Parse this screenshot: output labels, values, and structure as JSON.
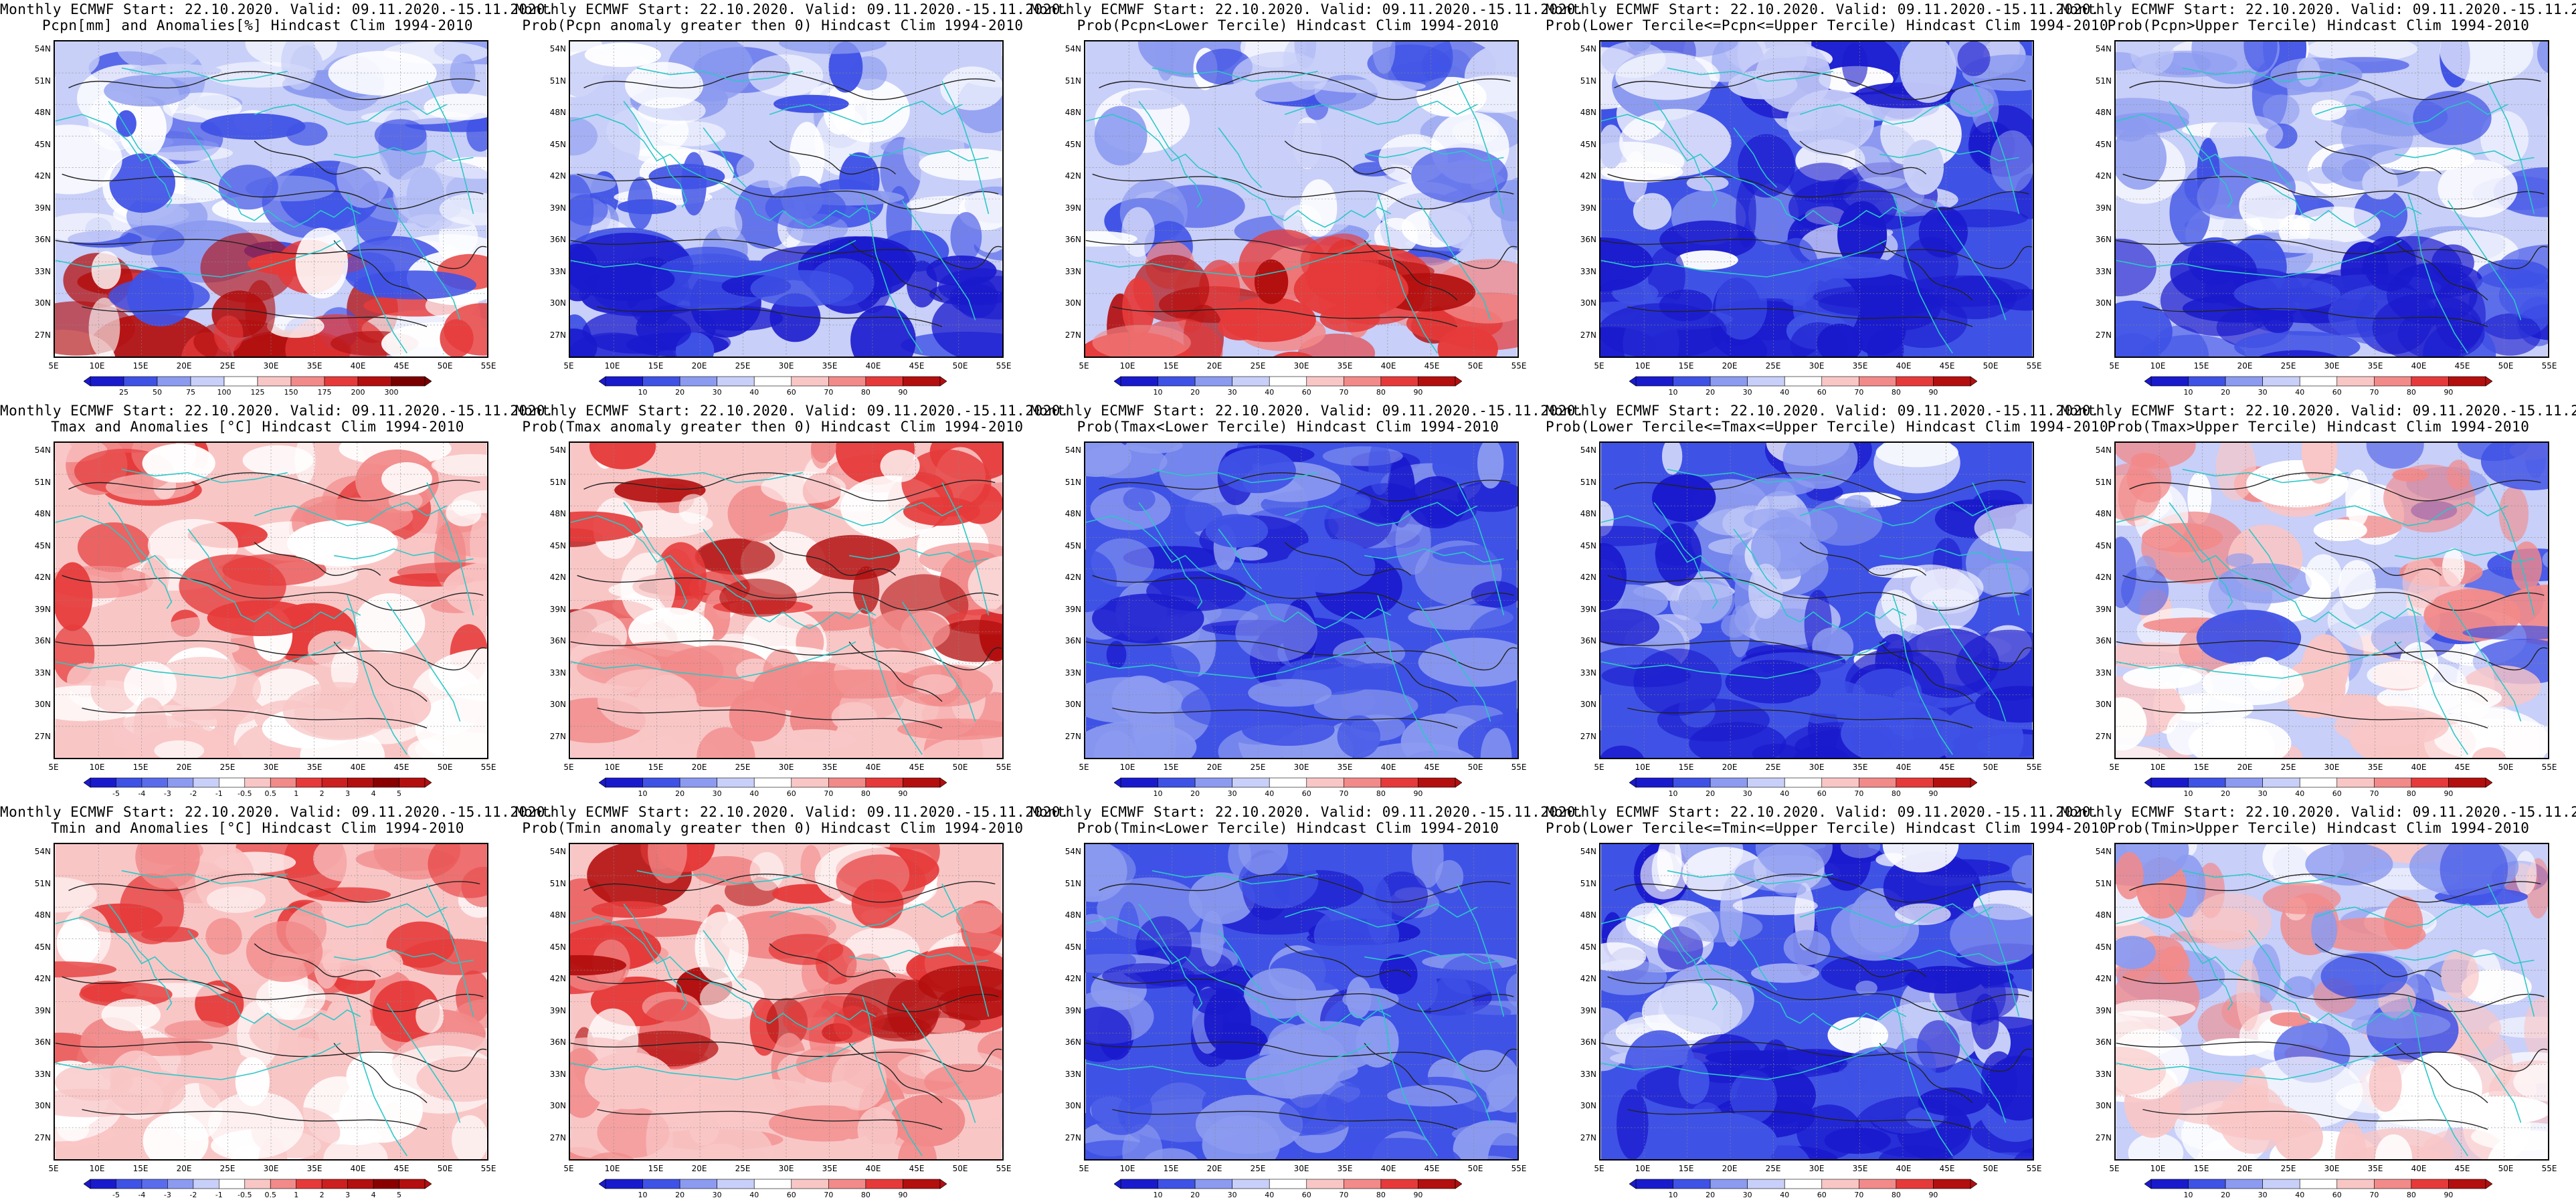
{
  "header_line1": "Monthly ECMWF Start: 22.10.2020. Valid: 09.11.2020.-15.11.2020.",
  "lat_ticks": [
    "54N",
    "51N",
    "48N",
    "45N",
    "42N",
    "39N",
    "36N",
    "33N",
    "30N",
    "27N"
  ],
  "lon_ticks": [
    "5E",
    "10E",
    "15E",
    "20E",
    "25E",
    "30E",
    "35E",
    "40E",
    "45E",
    "50E",
    "55E"
  ],
  "colorbars": {
    "pcpn_anom": [
      "25",
      "50",
      "75",
      "100",
      "125",
      "150",
      "175",
      "200",
      "300"
    ],
    "prob": [
      "10",
      "20",
      "30",
      "40",
      "60",
      "70",
      "80",
      "90"
    ],
    "temp_anom": [
      "-5",
      "-4",
      "-3",
      "-2",
      "-1",
      "-0.5",
      "0.5",
      "1",
      "2",
      "3",
      "4",
      "5"
    ]
  },
  "colors": {
    "dark_blue": "#1a1acd",
    "blue": "#3f52e6",
    "light_blue": "#8c9bf0",
    "pale_blue": "#c8cff8",
    "white": "#ffffff",
    "pale_red": "#f9c6c6",
    "light_red": "#f28a8a",
    "red": "#e63a3a",
    "dark_red": "#b30f0f",
    "coast": "#2bc8c8"
  },
  "panels": [
    {
      "title2": "Pcpn[mm] and Anomalies[%] Hindcast Clim 1994-2010",
      "bar": "pcpn_anom",
      "style": "pcpn"
    },
    {
      "title2": "Prob(Pcpn anomaly greater then 0) Hindcast Clim 1994-2010",
      "bar": "prob",
      "style": "wetblue"
    },
    {
      "title2": "Prob(Pcpn<Lower Tercile) Hindcast Clim 1994-2010",
      "bar": "prob",
      "style": "dryred"
    },
    {
      "title2": "Prob(Lower Tercile<=Pcpn<=Upper Tercile) Hindcast Clim 1994-2010",
      "bar": "prob",
      "style": "blue"
    },
    {
      "title2": "Prob(Pcpn>Upper Tercile) Hindcast Clim 1994-2010",
      "bar": "prob",
      "style": "wetblue"
    },
    {
      "title2": "Tmax and Anomalies [°C] Hindcast Clim 1994-2010",
      "bar": "temp_anom",
      "style": "warm"
    },
    {
      "title2": "Prob(Tmax anomaly greater then 0) Hindcast Clim 1994-2010",
      "bar": "prob",
      "style": "hot"
    },
    {
      "title2": "Prob(Tmax<Lower Tercile) Hindcast Clim 1994-2010",
      "bar": "prob",
      "style": "cold"
    },
    {
      "title2": "Prob(Lower Tercile<=Tmax<=Upper Tercile) Hindcast Clim 1994-2010",
      "bar": "prob",
      "style": "blue"
    },
    {
      "title2": "Prob(Tmax>Upper Tercile) Hindcast Clim 1994-2010",
      "bar": "prob",
      "style": "mixed"
    },
    {
      "title2": "Tmin and Anomalies [°C] Hindcast Clim 1994-2010",
      "bar": "temp_anom",
      "style": "warm"
    },
    {
      "title2": "Prob(Tmin anomaly greater then 0) Hindcast Clim 1994-2010",
      "bar": "prob",
      "style": "hot"
    },
    {
      "title2": "Prob(Tmin<Lower Tercile) Hindcast Clim 1994-2010",
      "bar": "prob",
      "style": "cold"
    },
    {
      "title2": "Prob(Lower Tercile<=Tmin<=Upper Tercile) Hindcast Clim 1994-2010",
      "bar": "prob",
      "style": "blue"
    },
    {
      "title2": "Prob(Tmin>Upper Tercile) Hindcast Clim 1994-2010",
      "bar": "prob",
      "style": "mixed"
    }
  ]
}
